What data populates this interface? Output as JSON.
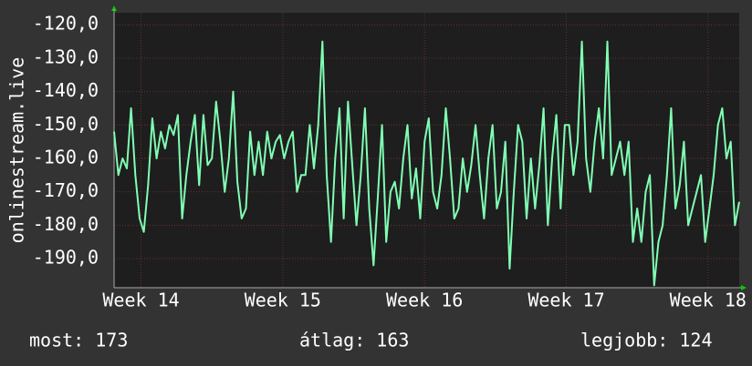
{
  "chart_data": {
    "type": "line",
    "y_label": "onlinestream.live",
    "color": "#80ffb4",
    "grid": true,
    "xlim": [
      13.81,
      18.22
    ],
    "xticks": [
      {
        "value": 14,
        "label": "Week 14"
      },
      {
        "value": 15,
        "label": "Week 15"
      },
      {
        "value": 16,
        "label": "Week 16"
      },
      {
        "value": 17,
        "label": "Week 17"
      },
      {
        "value": 18,
        "label": "Week 18"
      }
    ],
    "ylim": [
      -198.7,
      -116.4
    ],
    "yticks": [
      {
        "value": -120,
        "label": "-120,0"
      },
      {
        "value": -130,
        "label": "-130,0"
      },
      {
        "value": -140,
        "label": "-140,0"
      },
      {
        "value": -150,
        "label": "-150,0"
      },
      {
        "value": -160,
        "label": "-160,0"
      },
      {
        "value": -170,
        "label": "-170,0"
      },
      {
        "value": -180,
        "label": "-180,0"
      },
      {
        "value": -190,
        "label": "-190,0"
      }
    ],
    "x": [
      13.81,
      13.84,
      13.87,
      13.9,
      13.93,
      13.96,
      13.99,
      14.02,
      14.05,
      14.08,
      14.11,
      14.14,
      14.17,
      14.2,
      14.23,
      14.26,
      14.29,
      14.32,
      14.35,
      14.38,
      14.41,
      14.44,
      14.47,
      14.5,
      14.53,
      14.56,
      14.59,
      14.62,
      14.65,
      14.68,
      14.71,
      14.74,
      14.77,
      14.8,
      14.83,
      14.86,
      14.89,
      14.92,
      14.95,
      14.98,
      15.01,
      15.04,
      15.07,
      15.1,
      15.13,
      15.16,
      15.19,
      15.22,
      15.25,
      15.28,
      15.31,
      15.34,
      15.37,
      15.4,
      15.43,
      15.46,
      15.49,
      15.52,
      15.55,
      15.58,
      15.61,
      15.64,
      15.67,
      15.7,
      15.73,
      15.76,
      15.79,
      15.82,
      15.85,
      15.88,
      15.91,
      15.94,
      15.97,
      16.0,
      16.03,
      16.06,
      16.09,
      16.12,
      16.15,
      16.18,
      16.21,
      16.24,
      16.27,
      16.3,
      16.33,
      16.36,
      16.39,
      16.42,
      16.45,
      16.48,
      16.51,
      16.54,
      16.57,
      16.6,
      16.63,
      16.66,
      16.69,
      16.72,
      16.75,
      16.78,
      16.81,
      16.84,
      16.87,
      16.9,
      16.93,
      16.96,
      16.99,
      17.02,
      17.05,
      17.08,
      17.11,
      17.14,
      17.17,
      17.2,
      17.23,
      17.26,
      17.29,
      17.32,
      17.35,
      17.38,
      17.41,
      17.44,
      17.47,
      17.5,
      17.53,
      17.56,
      17.59,
      17.62,
      17.65,
      17.68,
      17.71,
      17.74,
      17.77,
      17.8,
      17.83,
      17.86,
      17.89,
      17.92,
      17.95,
      17.98,
      18.01,
      18.04,
      18.07,
      18.1,
      18.13,
      18.16,
      18.19,
      18.22
    ],
    "values": [
      -152,
      -165,
      -160,
      -163,
      -145,
      -165,
      -178,
      -182,
      -168,
      -148,
      -160,
      -152,
      -157,
      -150,
      -153,
      -147,
      -178,
      -165,
      -155,
      -147,
      -168,
      -147,
      -162,
      -160,
      -143,
      -155,
      -170,
      -160,
      -140,
      -167,
      -178,
      -175,
      -152,
      -165,
      -155,
      -165,
      -152,
      -160,
      -155,
      -153,
      -160,
      -155,
      -152,
      -170,
      -165,
      -165,
      -150,
      -163,
      -150,
      -125,
      -165,
      -185,
      -160,
      -145,
      -178,
      -143,
      -162,
      -180,
      -165,
      -145,
      -175,
      -192,
      -172,
      -150,
      -185,
      -170,
      -167,
      -175,
      -160,
      -150,
      -172,
      -163,
      -178,
      -155,
      -148,
      -170,
      -175,
      -165,
      -145,
      -160,
      -178,
      -175,
      -160,
      -170,
      -162,
      -150,
      -165,
      -178,
      -160,
      -150,
      -175,
      -170,
      -155,
      -193,
      -170,
      -150,
      -155,
      -178,
      -160,
      -175,
      -162,
      -145,
      -180,
      -160,
      -147,
      -175,
      -150,
      -150,
      -165,
      -155,
      -125,
      -160,
      -170,
      -155,
      -145,
      -160,
      -125,
      -165,
      -160,
      -155,
      -165,
      -155,
      -185,
      -175,
      -185,
      -170,
      -165,
      -198,
      -185,
      -180,
      -165,
      -145,
      -175,
      -168,
      -155,
      -180,
      -175,
      -170,
      -165,
      -185,
      -175,
      -165,
      -150,
      -145,
      -160,
      -155,
      -180,
      -173
    ]
  },
  "stats": {
    "current": "most: 173",
    "average": "átlag: 163",
    "best": "legjobb: 124"
  }
}
